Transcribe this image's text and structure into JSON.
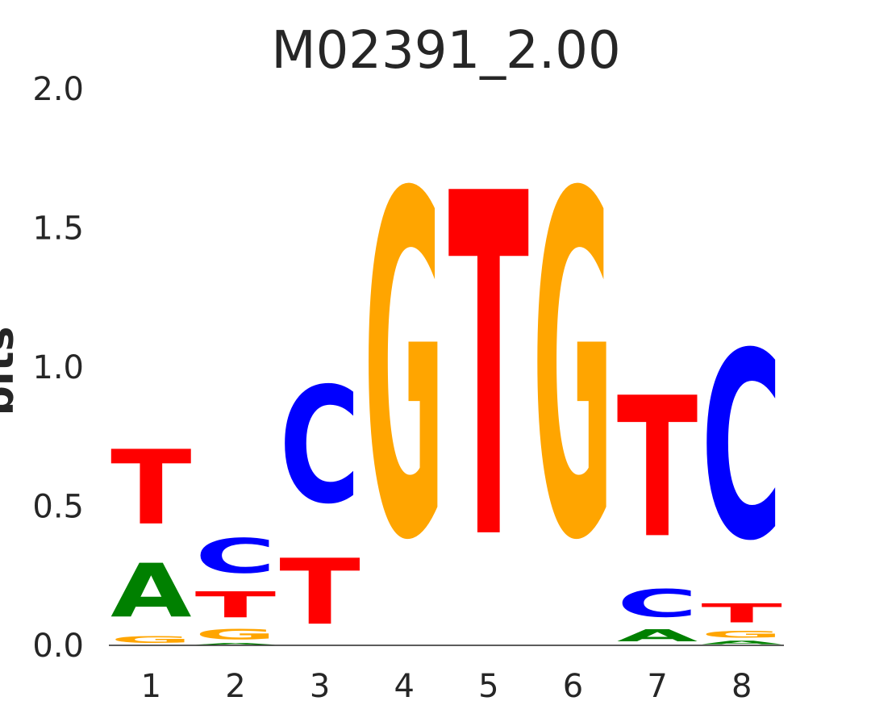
{
  "chart_data": {
    "type": "sequence_logo",
    "title": "M02391_2.00",
    "ylabel": "bits",
    "ylim": [
      0,
      2.0
    ],
    "yticks": [
      "0.0",
      "0.5",
      "1.0",
      "1.5",
      "2.0"
    ],
    "yticks_values": [
      0,
      0.5,
      1.0,
      1.5,
      2.0
    ],
    "positions": [
      "1",
      "2",
      "3",
      "4",
      "5",
      "6",
      "7",
      "8"
    ],
    "colors": {
      "A": "#008000",
      "C": "#0000ff",
      "G": "#ffa500",
      "T": "#ff0000"
    },
    "stacks": [
      [
        {
          "base": "G",
          "bits": 0.04
        },
        {
          "base": "A",
          "bits": 0.31
        },
        {
          "base": "T",
          "bits": 0.43
        }
      ],
      [
        {
          "base": "A",
          "bits": 0.01
        },
        {
          "base": "G",
          "bits": 0.06
        },
        {
          "base": "T",
          "bits": 0.15
        },
        {
          "base": "C",
          "bits": 0.2
        }
      ],
      [
        {
          "base": "T",
          "bits": 0.38
        },
        {
          "base": "C",
          "bits": 0.67
        }
      ],
      [
        {
          "base": "G",
          "bits": 1.98
        }
      ],
      [
        {
          "base": "T",
          "bits": 1.98
        }
      ],
      [
        {
          "base": "G",
          "bits": 1.98
        }
      ],
      [
        {
          "base": "A",
          "bits": 0.07
        },
        {
          "base": "C",
          "bits": 0.16
        },
        {
          "base": "T",
          "bits": 0.81
        }
      ],
      [
        {
          "base": "A",
          "bits": 0.02
        },
        {
          "base": "G",
          "bits": 0.04
        },
        {
          "base": "T",
          "bits": 0.11
        },
        {
          "base": "C",
          "bits": 1.08
        }
      ]
    ]
  }
}
